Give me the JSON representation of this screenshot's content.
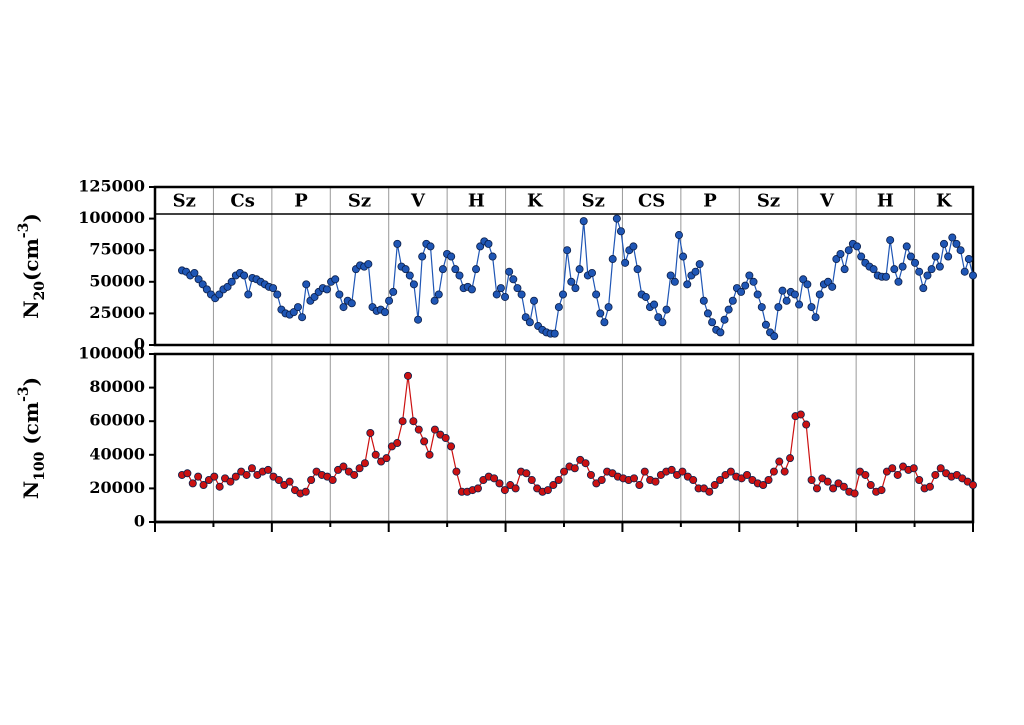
{
  "chart_data": [
    {
      "type": "line",
      "ylabel": [
        "N",
        "20",
        "(cm",
        "-3",
        ")"
      ],
      "segments": [
        "Sz",
        "Cs",
        "P",
        "Sz",
        "V",
        "H",
        "K",
        "Sz",
        "CS",
        "P",
        "Sz",
        "V",
        "H",
        "K"
      ],
      "ylim": [
        0,
        125000
      ],
      "yticks": [
        0,
        25000,
        50000,
        75000,
        100000,
        125000
      ],
      "series": [
        {
          "color": "#1f56b5",
          "values": [
            59000,
            58000,
            55000,
            57000,
            52000,
            48000,
            44000,
            40000,
            37000,
            40000,
            44000,
            46000,
            50000,
            55000,
            57000,
            55000,
            40000,
            53000,
            52000,
            50000,
            48000,
            46000,
            45000,
            40000,
            28000,
            25000,
            24000,
            26000,
            30000,
            22000,
            48000,
            35000,
            38000,
            42000,
            45000,
            44000,
            50000,
            52000,
            40000,
            30000,
            35000,
            33000,
            60000,
            63000,
            62000,
            64000,
            30000,
            27000,
            28000,
            26000,
            35000,
            42000,
            80000,
            62000,
            60000,
            55000,
            48000,
            20000,
            70000,
            80000,
            78000,
            35000,
            40000,
            60000,
            72000,
            70000,
            60000,
            55000,
            45000,
            46000,
            44000,
            60000,
            78000,
            82000,
            80000,
            70000,
            40000,
            45000,
            38000,
            58000,
            52000,
            45000,
            40000,
            22000,
            18000,
            35000,
            15000,
            12000,
            10000,
            9000,
            9000,
            30000,
            40000,
            75000,
            50000,
            45000,
            60000,
            98000,
            55000,
            57000,
            40000,
            25000,
            18000,
            30000,
            68000,
            100000,
            90000,
            65000,
            75000,
            78000,
            60000,
            40000,
            38000,
            30000,
            32000,
            22000,
            18000,
            28000,
            55000,
            50000,
            87000,
            70000,
            48000,
            55000,
            58000,
            64000,
            35000,
            25000,
            18000,
            12000,
            10000,
            20000,
            28000,
            35000,
            45000,
            42000,
            47000,
            55000,
            50000,
            40000,
            30000,
            16000,
            10000,
            7000,
            30000,
            43000,
            35000,
            42000,
            40000,
            32000,
            52000,
            48000,
            30000,
            22000,
            40000,
            48000,
            50000,
            46000,
            68000,
            72000,
            60000,
            75000,
            80000,
            78000,
            70000,
            65000,
            62000,
            60000,
            55000,
            54000,
            54000,
            83000,
            60000,
            50000,
            62000,
            78000,
            70000,
            65000,
            58000,
            45000,
            55000,
            60000,
            70000,
            62000,
            80000,
            70000,
            85000,
            80000,
            75000,
            58000,
            68000,
            55000
          ]
        }
      ]
    },
    {
      "type": "line",
      "ylabel": [
        "N",
        "100",
        " (cm",
        "-3",
        ")"
      ],
      "ylim": [
        0,
        100000
      ],
      "yticks": [
        0,
        20000,
        40000,
        60000,
        80000,
        100000
      ],
      "series": [
        {
          "color": "#cc1111",
          "values": [
            28000,
            29000,
            23000,
            27000,
            22000,
            25000,
            27000,
            21000,
            26000,
            24000,
            27000,
            30000,
            28000,
            32000,
            28000,
            30000,
            31000,
            27000,
            25000,
            22000,
            24000,
            19000,
            17000,
            18000,
            25000,
            30000,
            28000,
            27000,
            25000,
            31000,
            33000,
            30000,
            28000,
            32000,
            35000,
            53000,
            40000,
            36000,
            38000,
            45000,
            47000,
            60000,
            87000,
            60000,
            55000,
            48000,
            40000,
            55000,
            52000,
            50000,
            45000,
            30000,
            18000,
            18000,
            19000,
            20000,
            25000,
            27000,
            26000,
            23000,
            19000,
            22000,
            20000,
            30000,
            29000,
            25000,
            20000,
            18000,
            19000,
            22000,
            25000,
            30000,
            33000,
            32000,
            37000,
            35000,
            28000,
            23000,
            25000,
            30000,
            29000,
            27000,
            26000,
            25000,
            26000,
            22000,
            30000,
            25000,
            24000,
            28000,
            30000,
            31000,
            28000,
            30000,
            27000,
            25000,
            20000,
            20000,
            18000,
            22000,
            25000,
            28000,
            30000,
            27000,
            26000,
            28000,
            25000,
            23000,
            22000,
            25000,
            30000,
            36000,
            30000,
            38000,
            63000,
            64000,
            58000,
            25000,
            20000,
            26000,
            24000,
            20000,
            23000,
            21000,
            18000,
            17000,
            30000,
            28000,
            22000,
            18000,
            19000,
            30000,
            32000,
            28000,
            33000,
            31000,
            32000,
            25000,
            20000,
            21000,
            28000,
            32000,
            29000,
            27000,
            28000,
            26000,
            24000,
            22000
          ]
        }
      ]
    }
  ]
}
